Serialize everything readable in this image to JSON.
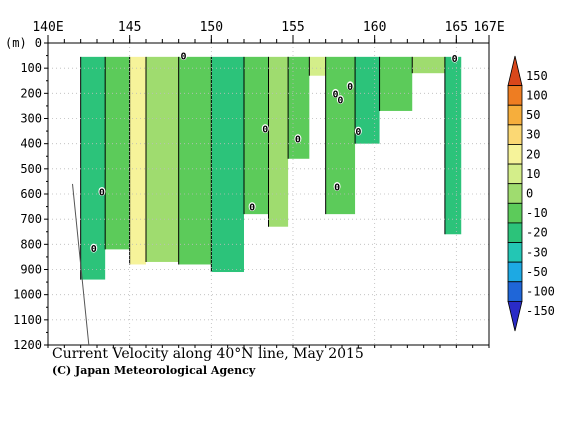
{
  "chart_data": {
    "type": "heatmap",
    "title": "Current Velocity along 40°N line, May 2015",
    "credit": "(C) Japan Meteorological Agency",
    "y_unit_label": "(m)",
    "x_range": [
      140,
      167
    ],
    "y_range": [
      0,
      1200
    ],
    "x_ticks": [
      {
        "value": 140,
        "label": "140E"
      },
      {
        "value": 145,
        "label": "145"
      },
      {
        "value": 150,
        "label": "150"
      },
      {
        "value": 155,
        "label": "155"
      },
      {
        "value": 160,
        "label": "160"
      },
      {
        "value": 165,
        "label": "165"
      },
      {
        "value": 167,
        "label": "167E"
      }
    ],
    "y_ticks": [
      0,
      100,
      200,
      300,
      400,
      500,
      600,
      700,
      800,
      900,
      1000,
      1100,
      1200
    ],
    "colorbar": {
      "levels": [
        "150",
        "100",
        "50",
        "30",
        "20",
        "10",
        "0",
        "-10",
        "-20",
        "-30",
        "-50",
        "-100",
        "-150"
      ],
      "colors": [
        "#d9471b",
        "#ee7d22",
        "#f6ae3c",
        "#fbd874",
        "#f6f39a",
        "#d4ee8a",
        "#9fdc6f",
        "#5ccb5a",
        "#2cc37a",
        "#23c6b4",
        "#1da9e3",
        "#1f66d8",
        "#2a2bc7"
      ]
    },
    "contour_zero_labels": [
      {
        "lon": 148.3,
        "depth": 50
      },
      {
        "lon": 164.9,
        "depth": 60
      },
      {
        "lon": 158.5,
        "depth": 170
      },
      {
        "lon": 157.6,
        "depth": 200
      },
      {
        "lon": 157.9,
        "depth": 225
      },
      {
        "lon": 153.3,
        "depth": 340
      },
      {
        "lon": 159.0,
        "depth": 350
      },
      {
        "lon": 155.3,
        "depth": 380
      },
      {
        "lon": 143.3,
        "depth": 590
      },
      {
        "lon": 157.7,
        "depth": 570
      },
      {
        "lon": 152.5,
        "depth": 650
      },
      {
        "lon": 142.8,
        "depth": 815
      }
    ],
    "sections": [
      {
        "lon_start": 142.0,
        "lon_end": 143.5,
        "max_depth": 940,
        "value": -20
      },
      {
        "lon_start": 143.5,
        "lon_end": 145.0,
        "max_depth": 820,
        "value": -10
      },
      {
        "lon_start": 145.0,
        "lon_end": 146.0,
        "max_depth": 880,
        "value": 20
      },
      {
        "lon_start": 146.0,
        "lon_end": 148.0,
        "max_depth": 870,
        "value": 0
      },
      {
        "lon_start": 148.0,
        "lon_end": 150.0,
        "max_depth": 880,
        "value": -10
      },
      {
        "lon_start": 150.0,
        "lon_end": 152.0,
        "max_depth": 910,
        "value": -20
      },
      {
        "lon_start": 152.0,
        "lon_end": 153.5,
        "max_depth": 680,
        "value": -10
      },
      {
        "lon_start": 153.5,
        "lon_end": 154.7,
        "max_depth": 730,
        "value": 0
      },
      {
        "lon_start": 154.7,
        "lon_end": 156.0,
        "max_depth": 460,
        "value": -10
      },
      {
        "lon_start": 156.0,
        "lon_end": 157.0,
        "max_depth": 130,
        "value": 10
      },
      {
        "lon_start": 157.0,
        "lon_end": 158.8,
        "max_depth": 680,
        "value": -10
      },
      {
        "lon_start": 158.8,
        "lon_end": 160.3,
        "max_depth": 400,
        "value": -20
      },
      {
        "lon_start": 160.3,
        "lon_end": 162.3,
        "max_depth": 270,
        "value": -10
      },
      {
        "lon_start": 162.3,
        "lon_end": 164.3,
        "max_depth": 120,
        "value": 0
      },
      {
        "lon_start": 164.3,
        "lon_end": 165.3,
        "max_depth": 760,
        "value": -20
      }
    ],
    "grid": true
  }
}
